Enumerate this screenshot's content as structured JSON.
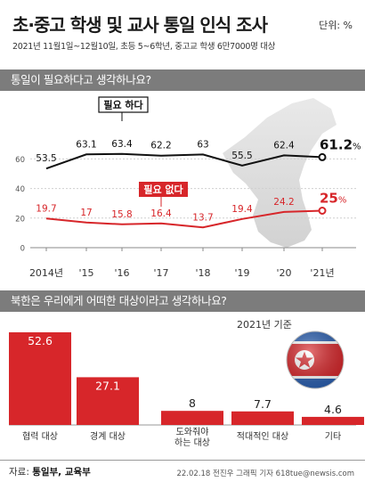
{
  "header": {
    "title": "초·중고 학생 및 교사 통일 인식 조사",
    "unit": "단위: %",
    "subtitle": "2021년 11월1일~12월10일, 초등 5~6학년, 중고교 학생 6만7000명 대상"
  },
  "colors": {
    "black_series": "#111111",
    "red_series": "#d7262a",
    "bar": "#d7262a",
    "header_bar": "#7c7c7c"
  },
  "chart_data": [
    {
      "type": "line",
      "title": "통일이 필요하다고 생각하나요?",
      "categories": [
        "2014년",
        "'15",
        "'16",
        "'17",
        "'18",
        "'19",
        "'20",
        "'21년"
      ],
      "ylim": [
        0,
        80
      ],
      "yticks": [
        0,
        20,
        40,
        60
      ],
      "grid": true,
      "series": [
        {
          "name": "필요 하다",
          "values": [
            53.5,
            63.1,
            63.4,
            62.2,
            63,
            55.5,
            62.4,
            61.2
          ],
          "labels": [
            "53.5",
            "63.1",
            "63.4",
            "62.2",
            "63",
            "55.5",
            "62.4",
            "61.2"
          ],
          "last_suffix": "%"
        },
        {
          "name": "필요 없다",
          "values": [
            19.7,
            17,
            15.8,
            16.4,
            13.7,
            19.4,
            24.2,
            25
          ],
          "labels": [
            "19.7",
            "17",
            "15.8",
            "16.4",
            "13.7",
            "19.4",
            "24.2",
            "25"
          ],
          "last_suffix": "%"
        }
      ]
    },
    {
      "type": "bar",
      "title": "북한은 우리에게 어떠한 대상이라고 생각하나요?",
      "note": "2021년 기준",
      "categories": [
        "협력 대상",
        "경계 대상",
        "도와줘야 하는 대상",
        "적대적인 대상",
        "기타"
      ],
      "category_lines": [
        [
          "협력 대상"
        ],
        [
          "경계 대상"
        ],
        [
          "도와줘야",
          "하는 대상"
        ],
        [
          "적대적인 대상"
        ],
        [
          "기타"
        ]
      ],
      "values": [
        52.6,
        27.1,
        8,
        7.7,
        4.6
      ],
      "labels": [
        "52.6",
        "27.1",
        "8",
        "7.7",
        "4.6"
      ],
      "ylim": [
        0,
        55
      ]
    }
  ],
  "footer": {
    "source_label": "자료:",
    "source_value": "통일부, 교육부",
    "credit": "22.02.18 전진우 그래픽 기자 618tue@newsis.com"
  }
}
